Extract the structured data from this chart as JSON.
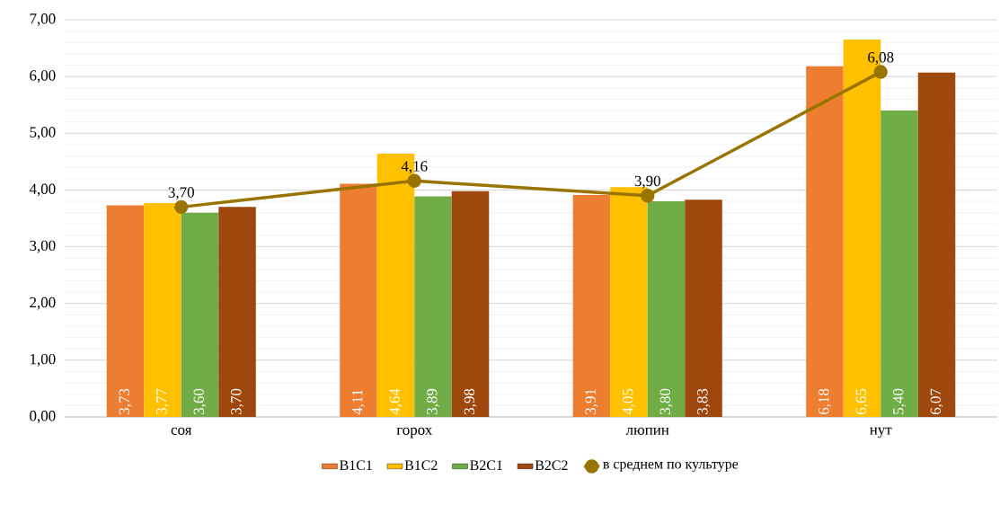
{
  "chart_data": {
    "type": "bar",
    "categories": [
      "соя",
      "горох",
      "люпин",
      "нут"
    ],
    "series": [
      {
        "name": "B1C1",
        "color": "#ed7d31",
        "values": [
          3.73,
          4.11,
          3.91,
          6.18
        ],
        "value_labels": [
          "3,73",
          "4,11",
          "3,91",
          "6,18"
        ]
      },
      {
        "name": "B1C2",
        "color": "#ffc000",
        "values": [
          3.77,
          4.64,
          4.05,
          6.65
        ],
        "value_labels": [
          "3,77",
          "4,64",
          "4,05",
          "6,65"
        ]
      },
      {
        "name": "B2C1",
        "color": "#70ad47",
        "values": [
          3.6,
          3.89,
          3.8,
          5.4
        ],
        "value_labels": [
          "3,60",
          "3,89",
          "3,80",
          "5,40"
        ]
      },
      {
        "name": "B2C2",
        "color": "#9e480e",
        "values": [
          3.7,
          3.98,
          3.83,
          6.07
        ],
        "value_labels": [
          "3,70",
          "3,98",
          "3,83",
          "6,07"
        ]
      },
      {
        "name": "в среднем по культуре",
        "type": "line",
        "color": "#9a7400",
        "marker": "circle",
        "values": [
          3.7,
          4.16,
          3.9,
          6.08
        ],
        "value_labels": [
          "3,70",
          "4,16",
          "3,90",
          "6,08"
        ]
      }
    ],
    "ylim": [
      0,
      7
    ],
    "yticks": [
      {
        "value": 0,
        "label": "0,00"
      },
      {
        "value": 1,
        "label": "1,00"
      },
      {
        "value": 2,
        "label": "2,00"
      },
      {
        "value": 3,
        "label": "3,00"
      },
      {
        "value": 4,
        "label": "4,00"
      },
      {
        "value": 5,
        "label": "5,00"
      },
      {
        "value": 6,
        "label": "6,00"
      },
      {
        "value": 7,
        "label": "7,00"
      }
    ],
    "grid": "y",
    "legend": "bottom"
  }
}
